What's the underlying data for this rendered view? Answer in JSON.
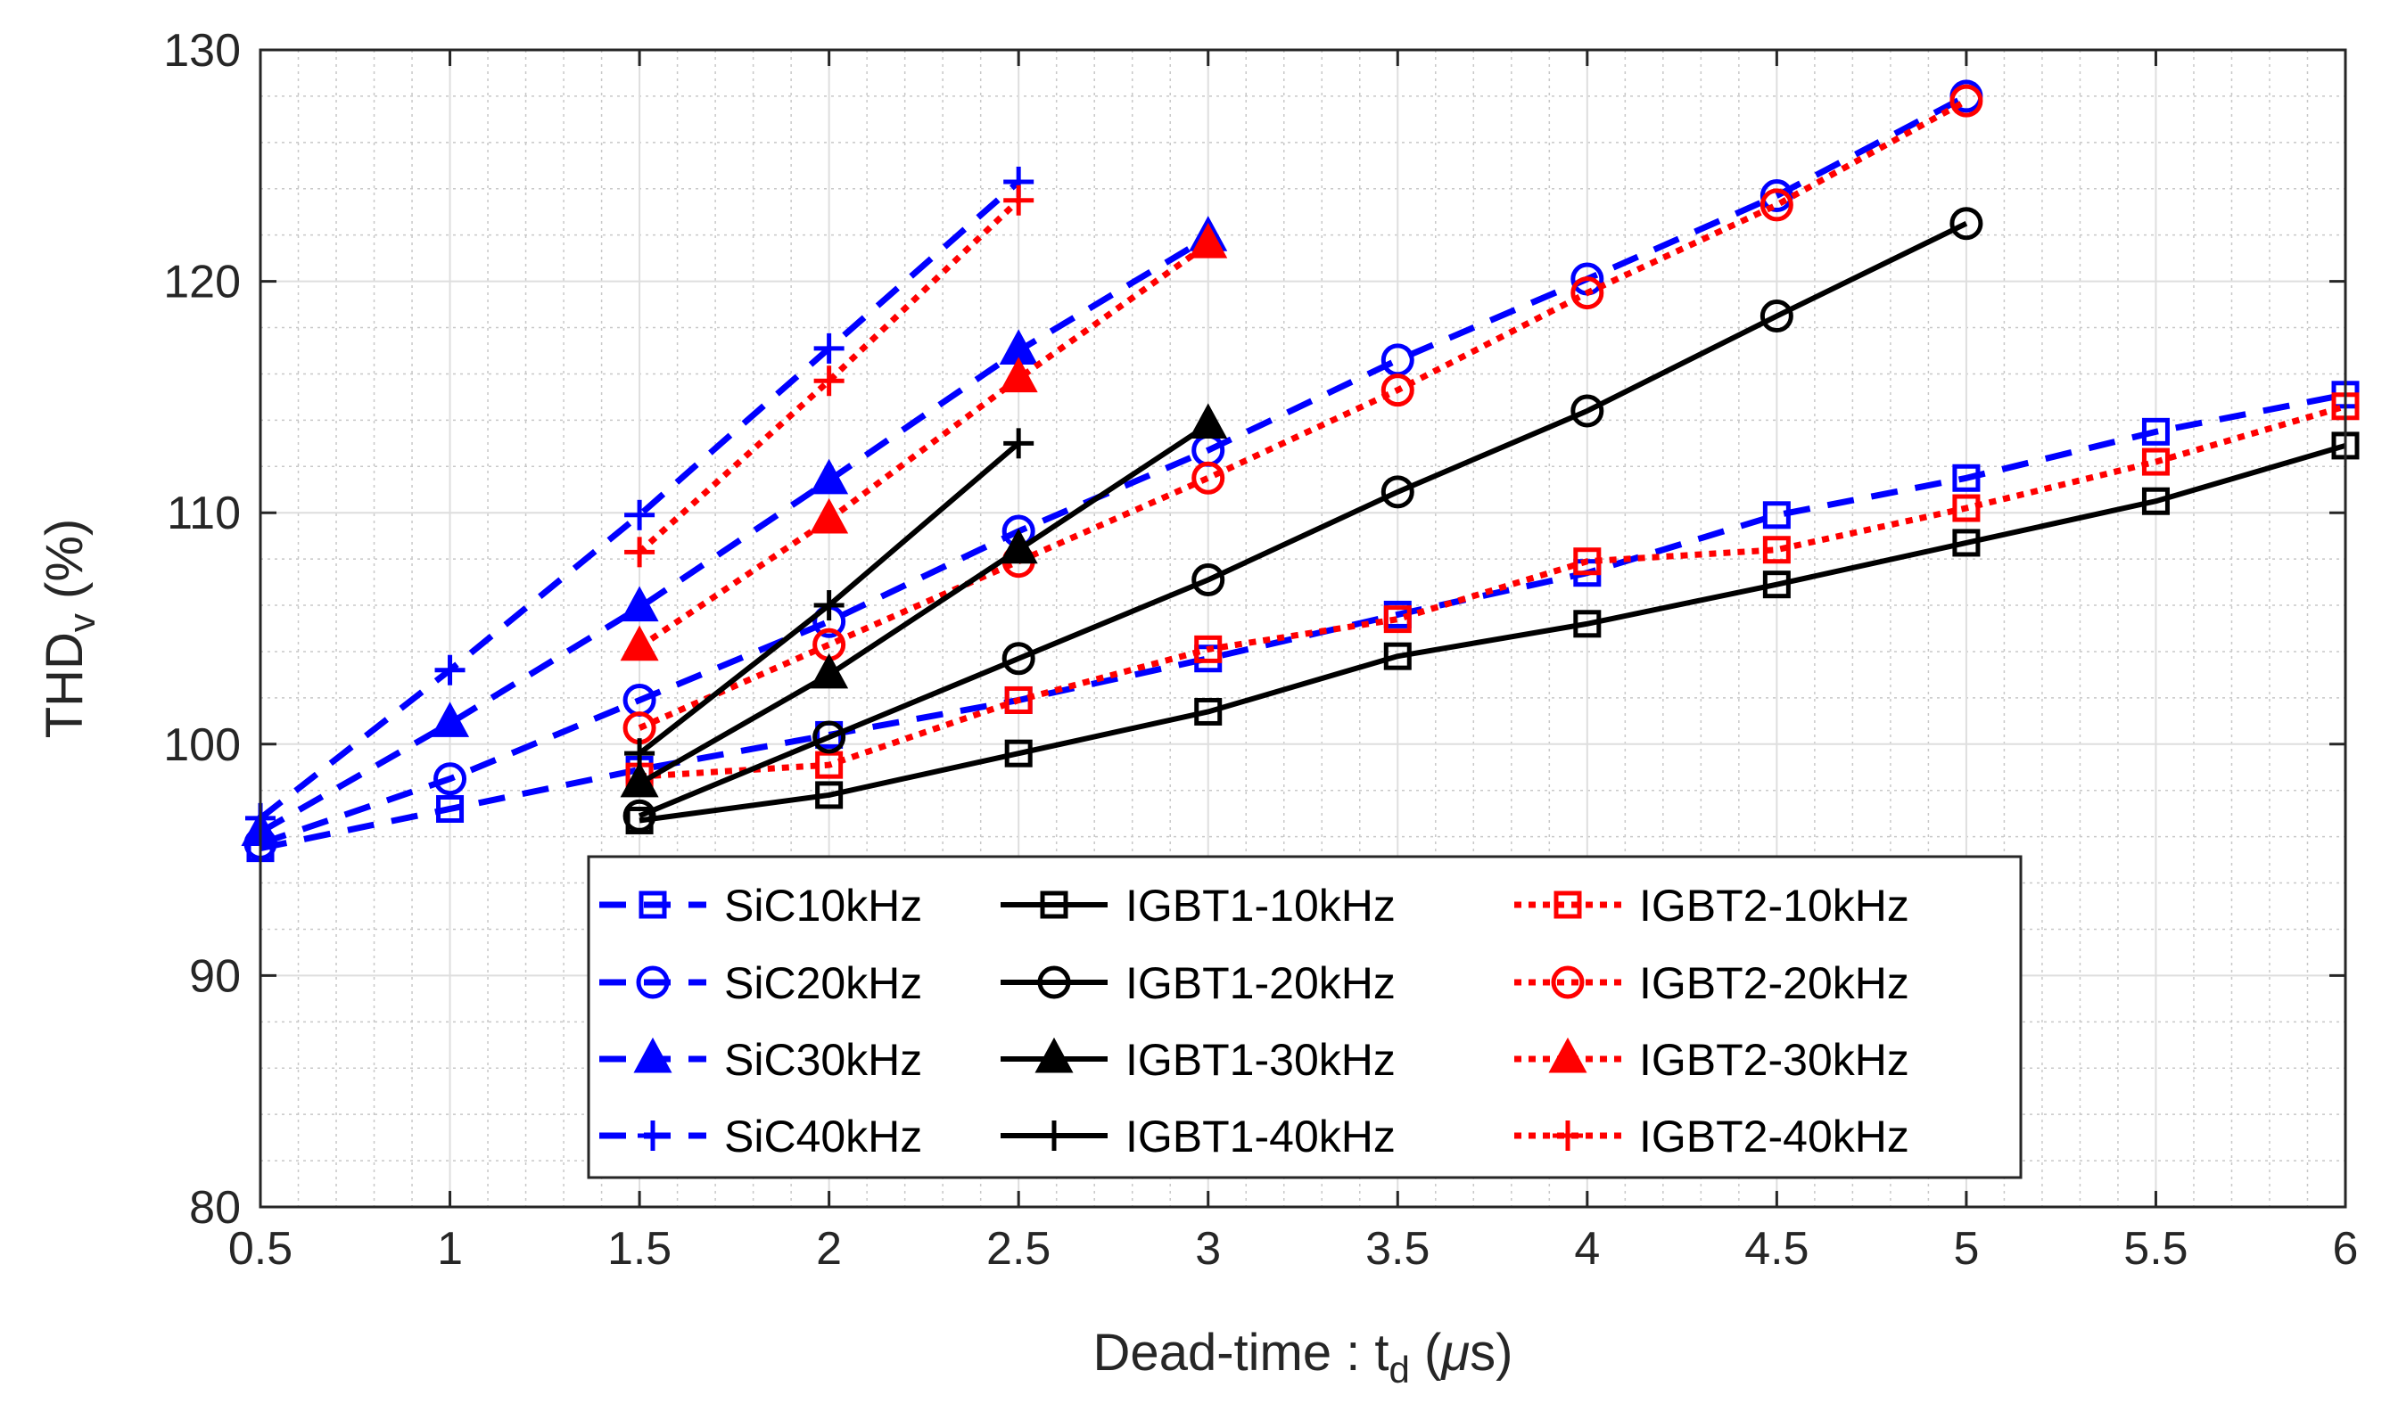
{
  "chart_data": {
    "type": "line",
    "title": "",
    "xlabel": {
      "main": "Dead-time : t",
      "sub": "d",
      "unit_open": " (",
      "mu": "μ",
      "unit_close": "s)"
    },
    "ylabel": {
      "main": "THD",
      "sub": "v",
      "unit": " (%)"
    },
    "xlim": [
      0.5,
      6
    ],
    "ylim": [
      80,
      130
    ],
    "x_ticks": [
      0.5,
      1,
      1.5,
      2,
      2.5,
      3,
      3.5,
      4,
      4.5,
      5,
      5.5,
      6
    ],
    "x_tick_labels": [
      "0.5",
      "1",
      "1.5",
      "2",
      "2.5",
      "3",
      "3.5",
      "4",
      "4.5",
      "5",
      "5.5",
      "6"
    ],
    "y_ticks": [
      80,
      90,
      100,
      110,
      120,
      130
    ],
    "y_tick_labels": [
      "80",
      "90",
      "100",
      "110",
      "120",
      "130"
    ],
    "grid": true,
    "minor_grid": true,
    "legend_position": "bottom-center",
    "series": [
      {
        "name": "SiC10kHz",
        "color": "#0000ff",
        "line": "dashed",
        "marker": "square",
        "x": [
          0.5,
          1,
          1.5,
          2,
          2.5,
          3,
          3.5,
          4,
          4.5,
          5,
          5.5,
          6
        ],
        "y": [
          95.5,
          97.2,
          98.9,
          100.4,
          101.9,
          103.7,
          105.6,
          107.4,
          109.9,
          111.5,
          113.5,
          115.1
        ]
      },
      {
        "name": "IGBT1-10kHz",
        "color": "#000000",
        "line": "solid",
        "marker": "square",
        "x": [
          1.5,
          2,
          2.5,
          3,
          3.5,
          4,
          4.5,
          5,
          5.5,
          6
        ],
        "y": [
          96.7,
          97.8,
          99.6,
          101.4,
          103.8,
          105.2,
          106.9,
          108.7,
          110.5,
          112.9
        ]
      },
      {
        "name": "IGBT2-10kHz",
        "color": "#ff0000",
        "line": "dotted",
        "marker": "square",
        "x": [
          1.5,
          2,
          2.5,
          3,
          3.5,
          4,
          4.5,
          5,
          5.5,
          6
        ],
        "y": [
          98.6,
          99.1,
          101.9,
          104.1,
          105.4,
          107.9,
          108.4,
          110.2,
          112.2,
          114.6
        ]
      },
      {
        "name": "SiC20kHz",
        "color": "#0000ff",
        "line": "dashed",
        "marker": "circle",
        "x": [
          0.5,
          1,
          1.5,
          2,
          2.5,
          3,
          3.5,
          4,
          4.5,
          5
        ],
        "y": [
          95.7,
          98.5,
          101.9,
          105.3,
          109.2,
          112.7,
          116.6,
          120.1,
          123.7,
          128.0
        ]
      },
      {
        "name": "IGBT1-20kHz",
        "color": "#000000",
        "line": "solid",
        "marker": "circle",
        "x": [
          1.5,
          2,
          2.5,
          3,
          3.5,
          4,
          4.5,
          5
        ],
        "y": [
          96.9,
          100.3,
          103.7,
          107.1,
          110.9,
          114.4,
          118.5,
          122.5
        ]
      },
      {
        "name": "IGBT2-20kHz",
        "color": "#ff0000",
        "line": "dotted",
        "marker": "circle",
        "x": [
          1.5,
          2,
          2.5,
          3,
          3.5,
          4,
          4.5,
          5
        ],
        "y": [
          100.7,
          104.3,
          107.9,
          111.5,
          115.3,
          119.5,
          123.3,
          127.8
        ]
      },
      {
        "name": "SiC30kHz",
        "color": "#0000ff",
        "line": "dashed",
        "marker": "triangle",
        "x": [
          0.5,
          1,
          1.5,
          2,
          2.5,
          3
        ],
        "y": [
          96.2,
          100.9,
          105.9,
          111.4,
          117.0,
          121.9
        ]
      },
      {
        "name": "IGBT1-30kHz",
        "color": "#000000",
        "line": "solid",
        "marker": "triangle",
        "x": [
          1.5,
          2,
          2.5,
          3
        ],
        "y": [
          98.3,
          103.0,
          108.4,
          113.8
        ]
      },
      {
        "name": "IGBT2-30kHz",
        "color": "#ff0000",
        "line": "dotted",
        "marker": "triangle",
        "x": [
          1.5,
          2,
          2.5,
          3
        ],
        "y": [
          104.2,
          109.7,
          115.8,
          121.6
        ]
      },
      {
        "name": "SiC40kHz",
        "color": "#0000ff",
        "line": "dashed",
        "marker": "plus",
        "x": [
          0.5,
          1,
          1.5,
          2,
          2.5
        ],
        "y": [
          96.8,
          103.2,
          109.9,
          117.1,
          124.3
        ]
      },
      {
        "name": "IGBT1-40kHz",
        "color": "#000000",
        "line": "solid",
        "marker": "plus",
        "x": [
          1.5,
          2,
          2.5
        ],
        "y": [
          99.6,
          106.0,
          113.0
        ]
      },
      {
        "name": "IGBT2-40kHz",
        "color": "#ff0000",
        "line": "dotted",
        "marker": "plus",
        "x": [
          1.5,
          2,
          2.5
        ],
        "y": [
          108.3,
          115.7,
          123.5
        ]
      }
    ],
    "legend_columns": [
      [
        "SiC10kHz",
        "SiC20kHz",
        "SiC30kHz",
        "SiC40kHz"
      ],
      [
        "IGBT1-10kHz",
        "IGBT1-20kHz",
        "IGBT1-30kHz",
        "IGBT1-40kHz"
      ],
      [
        "IGBT2-10kHz",
        "IGBT2-20kHz",
        "IGBT2-30kHz",
        "IGBT2-40kHz"
      ]
    ]
  }
}
